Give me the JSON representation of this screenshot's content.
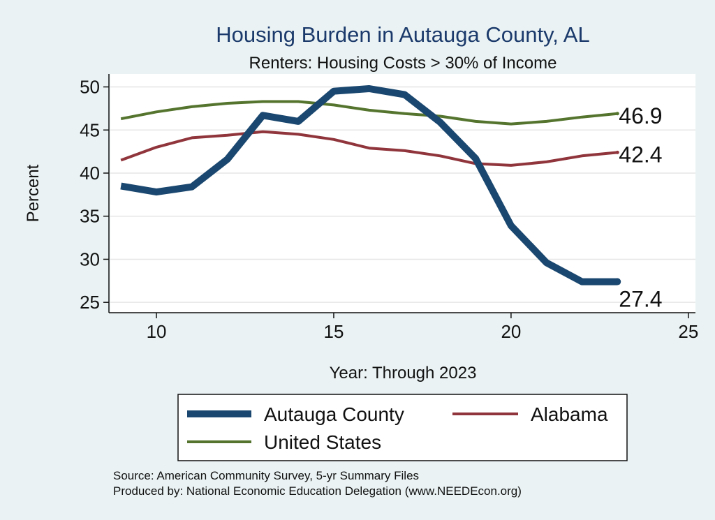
{
  "chart_data": {
    "type": "line",
    "title": "Housing Burden in Autauga County, AL",
    "subtitle": "Renters: Housing Costs > 30% of Income",
    "xlabel": "Year: Through 2023",
    "ylabel": "Percent",
    "xlim": [
      8.7,
      25.2
    ],
    "ylim": [
      23.8,
      51.5
    ],
    "x_ticks": [
      10,
      15,
      20,
      25
    ],
    "y_ticks": [
      25,
      30,
      35,
      40,
      45,
      50
    ],
    "grid": true,
    "x": [
      9,
      10,
      11,
      12,
      13,
      14,
      15,
      16,
      17,
      18,
      19,
      20,
      21,
      22,
      23
    ],
    "series": [
      {
        "name": "Autauga County",
        "color": "#1a476f",
        "values": [
          38.5,
          37.8,
          38.4,
          41.6,
          46.7,
          46.0,
          49.5,
          49.8,
          49.1,
          45.9,
          41.7,
          33.9,
          29.6,
          27.4,
          27.4
        ],
        "end_label": "27.4"
      },
      {
        "name": "Alabama",
        "color": "#90353b",
        "values": [
          41.5,
          43.0,
          44.1,
          44.4,
          44.8,
          44.5,
          43.9,
          42.9,
          42.6,
          42.0,
          41.1,
          40.9,
          41.3,
          42.0,
          42.4
        ],
        "end_label": "42.4"
      },
      {
        "name": "United States",
        "color": "#55752f",
        "values": [
          46.3,
          47.1,
          47.7,
          48.1,
          48.3,
          48.3,
          47.9,
          47.3,
          46.9,
          46.6,
          46.0,
          45.7,
          46.0,
          46.5,
          46.9
        ],
        "end_label": "46.9"
      }
    ],
    "legend_position": "bottom",
    "source_lines": [
      "Source: American Community Survey, 5-yr Summary Files",
      "Produced by: National Economic Education Delegation (www.NEEDEcon.org)"
    ]
  }
}
